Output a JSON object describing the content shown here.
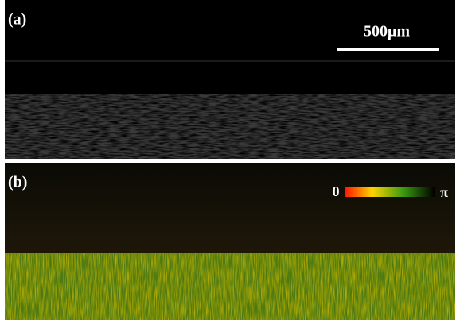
{
  "panels": [
    {
      "label": "(a)"
    },
    {
      "label": "(b)"
    }
  ],
  "scale_bar": {
    "label": "500μm"
  },
  "colorbar": {
    "min_label": "0",
    "max_label": "π"
  }
}
